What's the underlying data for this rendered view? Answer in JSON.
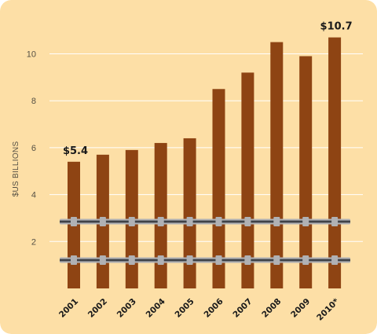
{
  "chart_data": {
    "type": "bar",
    "categories": [
      "2001",
      "2002",
      "2003",
      "2004",
      "2005",
      "2006",
      "2007",
      "2008",
      "2009",
      "2010*"
    ],
    "values": [
      5.4,
      5.7,
      5.9,
      6.2,
      6.4,
      8.5,
      9.2,
      10.5,
      9.9,
      10.7
    ],
    "ylabel": "$US BILLIONS",
    "ylim": [
      0,
      11.5
    ],
    "yticks": [
      2,
      4,
      6,
      8,
      10
    ],
    "grid": true,
    "legend": "none",
    "annotations": [
      {
        "category": "2001",
        "text": "$5.4"
      },
      {
        "category": "2010*",
        "text": "$10.7"
      }
    ],
    "decoration": "railroad tracks drawn across the bars",
    "colors": {
      "background": "#fddfa6",
      "bar": "#8e4413",
      "grid": "#ffffff",
      "rail": "#b0b1b4"
    }
  }
}
